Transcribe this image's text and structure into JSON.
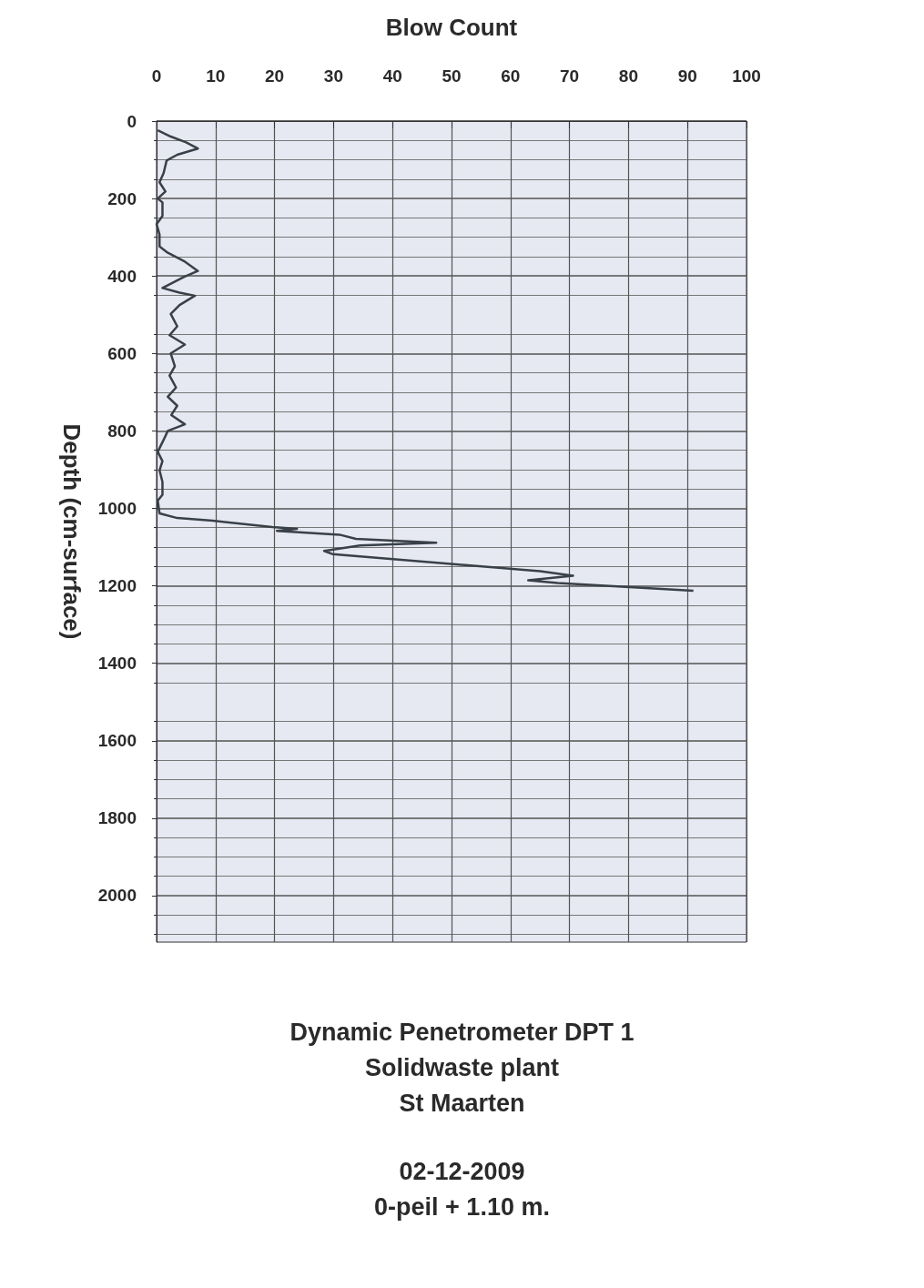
{
  "chart_data": {
    "type": "line",
    "title": "Dynamic Penetrometer DPT 1\nSolidwaste plant\nSt Maarten",
    "annotations": [
      "02-12-2009",
      "0-peil + 1.10 m."
    ],
    "xlabel": "Blow Count",
    "ylabel": "Depth (cm-surface)",
    "x": [
      0.2,
      2.4,
      5,
      7,
      3.5,
      1.7,
      1.2,
      0.5,
      1.5,
      0.2,
      1,
      1,
      0,
      0.5,
      0.5,
      1.9,
      4.8,
      7,
      4.6,
      1,
      3.9,
      6.5,
      3.9,
      2.4,
      3.5,
      2.2,
      4.8,
      2.4,
      3.1,
      2.2,
      3.3,
      1.9,
      3.5,
      2.5,
      4.8,
      1.9,
      1.2,
      0.2,
      1,
      0.5,
      1,
      1,
      0.2,
      0.5,
      3.5,
      9.5,
      19.6,
      23.8,
      20.4,
      31,
      33.8,
      47.4,
      34.5,
      28.4,
      29.8,
      48,
      65,
      70.6,
      63,
      68,
      91
    ],
    "values": [
      24,
      40,
      55,
      71,
      87,
      102,
      134,
      158,
      182,
      200,
      210,
      245,
      266,
      293,
      324,
      340,
      363,
      387,
      403,
      431,
      443,
      451,
      475,
      498,
      530,
      553,
      577,
      600,
      633,
      657,
      688,
      712,
      735,
      759,
      783,
      800,
      823,
      854,
      878,
      902,
      932,
      965,
      980,
      1013,
      1025,
      1032,
      1048,
      1053,
      1058,
      1068,
      1079,
      1089,
      1096,
      1110,
      1118,
      1141,
      1162,
      1174,
      1186,
      1193,
      1213
    ],
    "color": "#3a4048",
    "marker": "none",
    "line_style": "solid",
    "grid": true,
    "xlim": [
      0,
      100
    ],
    "xticks": [
      0,
      10,
      20,
      30,
      40,
      50,
      60,
      70,
      80,
      90,
      100
    ],
    "ylim": [
      2120,
      0
    ],
    "yticks": [
      0,
      200,
      400,
      600,
      800,
      1000,
      1200,
      1400,
      1600,
      1800,
      2000
    ]
  }
}
